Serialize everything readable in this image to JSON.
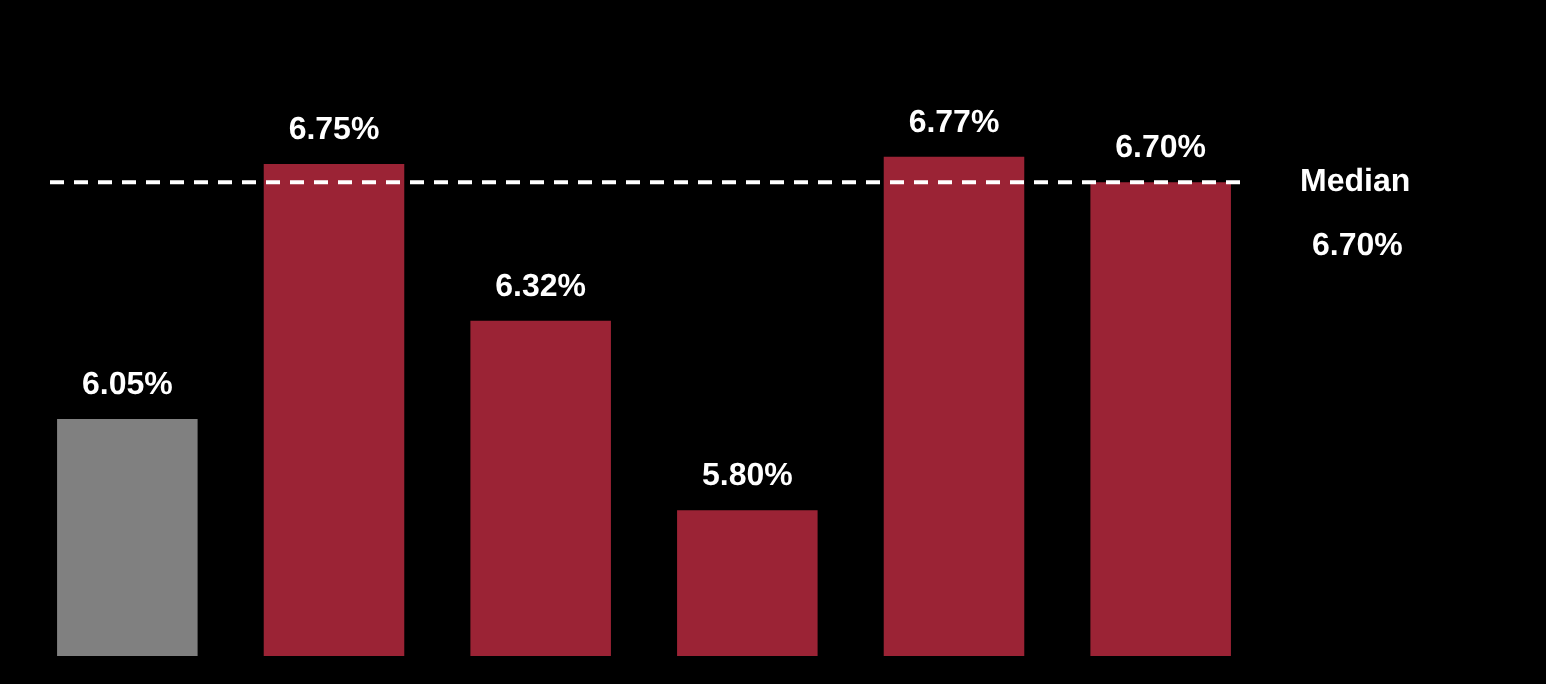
{
  "chart_data": {
    "type": "bar",
    "categories": [
      null,
      null,
      null,
      null,
      null,
      null
    ],
    "values": [
      6.05,
      6.75,
      6.32,
      5.8,
      6.77,
      6.7
    ],
    "colors": [
      "#808080",
      "#9b2335",
      "#9b2335",
      "#9b2335",
      "#9b2335",
      "#9b2335"
    ],
    "value_labels": [
      "6.05%",
      "6.75%",
      "6.32%",
      "5.80%",
      "6.77%",
      "6.70%"
    ],
    "tick_labels": false,
    "legend": false,
    "ref_lines": [
      {
        "axis": "y",
        "value": 6.7,
        "label": "Median",
        "color": "#ffffff",
        "line_style": "dashed"
      }
    ],
    "annotations": [
      "6.70%"
    ]
  }
}
